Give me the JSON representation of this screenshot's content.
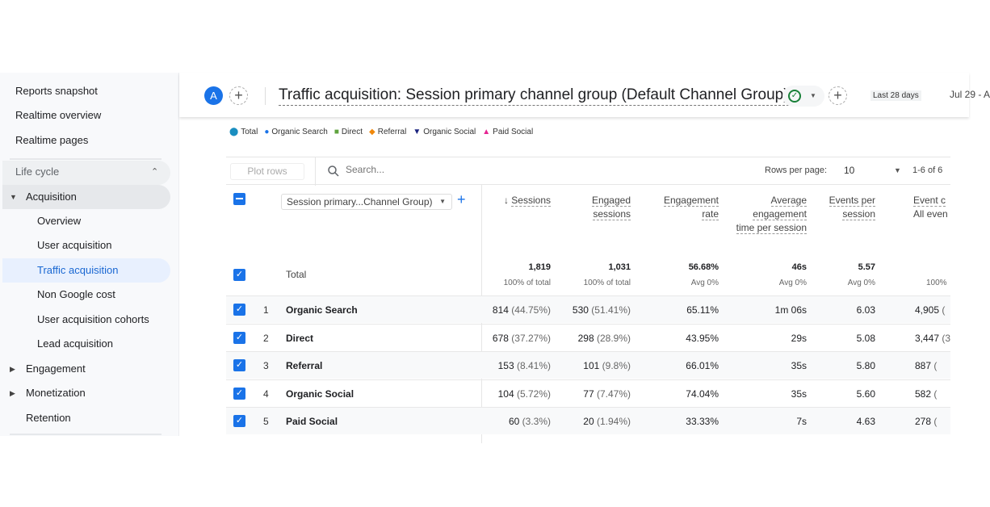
{
  "sidebar": {
    "top": [
      "Reports snapshot",
      "Realtime overview",
      "Realtime pages"
    ],
    "section": "Life cycle",
    "acquisition": "Acquisition",
    "sub": [
      "Overview",
      "User acquisition",
      "Traffic acquisition",
      "Non Google cost",
      "User acquisition cohorts",
      "Lead acquisition"
    ],
    "active": "Traffic acquisition",
    "groups": [
      "Engagement",
      "Monetization"
    ],
    "retention": "Retention"
  },
  "header": {
    "avatar": "A",
    "title": "Traffic acquisition: Session primary channel group (Default Channel Group)",
    "range_label": "Last 28 days",
    "range": "Jul 29 - A",
    "accent": "#1a73e8"
  },
  "legend": [
    {
      "label": "Total",
      "color": "#1a8ec0",
      "shape": "pin"
    },
    {
      "label": "Organic Search",
      "color": "#1a73e8",
      "shape": "circle"
    },
    {
      "label": "Direct",
      "color": "#5fa33e",
      "shape": "square"
    },
    {
      "label": "Referral",
      "color": "#f0880a",
      "shape": "diamond"
    },
    {
      "label": "Organic Social",
      "color": "#1a237e",
      "shape": "triangle-down"
    },
    {
      "label": "Paid Social",
      "color": "#e52592",
      "shape": "triangle-up"
    }
  ],
  "toolbar": {
    "plot_rows": "Plot rows",
    "search_placeholder": "Search...",
    "rows_per_page_label": "Rows per page:",
    "rows_per_page": "10",
    "pagination": "1-6 of 6"
  },
  "table": {
    "dimension": "Session primary...Channel Group)",
    "columns": [
      {
        "label": "Sessions",
        "sorted": true
      },
      {
        "label": "Engaged sessions"
      },
      {
        "label": "Engagement rate"
      },
      {
        "label": "Average engagement time per session"
      },
      {
        "label": "Events per session"
      },
      {
        "label": "Event c",
        "sub": "All even"
      }
    ],
    "total": {
      "label": "Total",
      "values": [
        "1,819",
        "1,031",
        "56.68%",
        "46s",
        "5.57",
        ""
      ],
      "subs": [
        "100% of total",
        "100% of total",
        "Avg 0%",
        "Avg 0%",
        "Avg 0%",
        "100%"
      ]
    },
    "rows": [
      {
        "n": "1",
        "label": "Organic Search",
        "values": [
          [
            "814",
            "(44.75%)"
          ],
          [
            "530",
            "(51.41%)"
          ],
          [
            "65.11%",
            ""
          ],
          [
            "1m 06s",
            ""
          ],
          [
            "6.03",
            ""
          ],
          [
            "4,905",
            "("
          ]
        ]
      },
      {
        "n": "2",
        "label": "Direct",
        "values": [
          [
            "678",
            "(37.27%)"
          ],
          [
            "298",
            "(28.9%)"
          ],
          [
            "43.95%",
            ""
          ],
          [
            "29s",
            ""
          ],
          [
            "5.08",
            ""
          ],
          [
            "3,447",
            "(3"
          ]
        ]
      },
      {
        "n": "3",
        "label": "Referral",
        "values": [
          [
            "153",
            "(8.41%)"
          ],
          [
            "101",
            "(9.8%)"
          ],
          [
            "66.01%",
            ""
          ],
          [
            "35s",
            ""
          ],
          [
            "5.80",
            ""
          ],
          [
            "887",
            "("
          ]
        ]
      },
      {
        "n": "4",
        "label": "Organic Social",
        "values": [
          [
            "104",
            "(5.72%)"
          ],
          [
            "77",
            "(7.47%)"
          ],
          [
            "74.04%",
            ""
          ],
          [
            "35s",
            ""
          ],
          [
            "5.60",
            ""
          ],
          [
            "582",
            "("
          ]
        ]
      },
      {
        "n": "5",
        "label": "Paid Social",
        "values": [
          [
            "60",
            "(3.3%)"
          ],
          [
            "20",
            "(1.94%)"
          ],
          [
            "33.33%",
            ""
          ],
          [
            "7s",
            ""
          ],
          [
            "4.63",
            ""
          ],
          [
            "278",
            "("
          ]
        ]
      }
    ]
  }
}
